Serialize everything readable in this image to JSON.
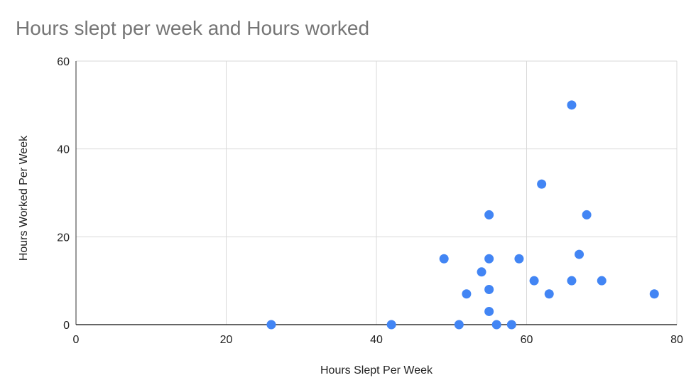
{
  "chart_data": {
    "type": "scatter",
    "title": "Hours slept per week and Hours worked",
    "xlabel": "Hours Slept Per Week",
    "ylabel": "Hours Worked Per Week",
    "xlim": [
      0,
      80
    ],
    "ylim": [
      0,
      60
    ],
    "x_ticks": [
      0,
      20,
      40,
      60,
      80
    ],
    "y_ticks": [
      0,
      20,
      40,
      60
    ],
    "x_tick_labels": [
      "0",
      "20",
      "40",
      "60",
      "80"
    ],
    "y_tick_labels": [
      "0",
      "20",
      "40",
      "60"
    ],
    "grid": true,
    "legend": "none",
    "colors": {
      "points": "#4285f4",
      "grid": "#d9d9d9",
      "axis": "#333333"
    },
    "series": [
      {
        "points": [
          {
            "x": 26,
            "y": 0
          },
          {
            "x": 42,
            "y": 0
          },
          {
            "x": 49,
            "y": 15
          },
          {
            "x": 51,
            "y": 0
          },
          {
            "x": 52,
            "y": 7
          },
          {
            "x": 54,
            "y": 12
          },
          {
            "x": 55,
            "y": 25
          },
          {
            "x": 55,
            "y": 15
          },
          {
            "x": 55,
            "y": 8
          },
          {
            "x": 55,
            "y": 3
          },
          {
            "x": 56,
            "y": 0
          },
          {
            "x": 58,
            "y": 0
          },
          {
            "x": 59,
            "y": 15
          },
          {
            "x": 61,
            "y": 10
          },
          {
            "x": 62,
            "y": 32
          },
          {
            "x": 63,
            "y": 7
          },
          {
            "x": 66,
            "y": 50
          },
          {
            "x": 66,
            "y": 10
          },
          {
            "x": 67,
            "y": 16
          },
          {
            "x": 68,
            "y": 25
          },
          {
            "x": 70,
            "y": 10
          },
          {
            "x": 77,
            "y": 7
          }
        ]
      }
    ]
  }
}
